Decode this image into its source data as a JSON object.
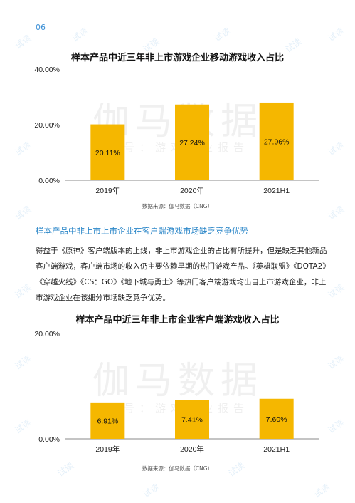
{
  "page_number": "06",
  "watermark": {
    "brand": "伽马数据",
    "sub": "微信号：游戏产业报告",
    "tile": "试读"
  },
  "colors": {
    "bar": "#F5B700",
    "accent": "#2a86c8",
    "axis": "#888888"
  },
  "chart1": {
    "title": "样本产品中近三年非上市游戏企业移动游戏收入占比",
    "source": "数据来源：伽马数据（CNG）",
    "chart_data": {
      "type": "bar",
      "categories": [
        "2019年",
        "2020年",
        "2021H1"
      ],
      "values": [
        20.11,
        27.24,
        27.96
      ],
      "data_labels": [
        "20.11%",
        "27.24%",
        "27.96%"
      ],
      "ytick_labels": [
        "0.00%",
        "20.00%",
        "40.00%"
      ],
      "yticks": [
        0,
        20,
        40
      ],
      "ylim": [
        0,
        40
      ],
      "grid": false,
      "legend": "none"
    }
  },
  "section": {
    "heading": "样本产品中非上市上市企业在客户端游戏市场缺乏竞争优势",
    "paragraph": "得益于《原神》客户端版本的上线，非上市游戏企业的占比有所提升，但是缺乏其他新品客户端游戏，客户端市场的收入仍主要依赖早期的热门游戏产品。《英雄联盟》《DOTA2》《穿越火线》《CS：GO》《地下城与勇士》等热门客户端游戏均出自上市游戏企业，非上市游戏企业在该细分市场缺乏竞争优势。"
  },
  "chart2": {
    "title": "样本产品中近三年非上市企业客户端游戏收入占比",
    "source": "数据来源：伽马数据（CNG）",
    "chart_data": {
      "type": "bar",
      "categories": [
        "2019年",
        "2020年",
        "2021H1"
      ],
      "values": [
        6.91,
        7.41,
        7.6
      ],
      "data_labels": [
        "6.91%",
        "7.41%",
        "7.60%"
      ],
      "ytick_labels": [
        "0.00%",
        "20.00%"
      ],
      "yticks": [
        0,
        20
      ],
      "ylim": [
        0,
        20
      ],
      "grid": false,
      "legend": "none"
    }
  }
}
